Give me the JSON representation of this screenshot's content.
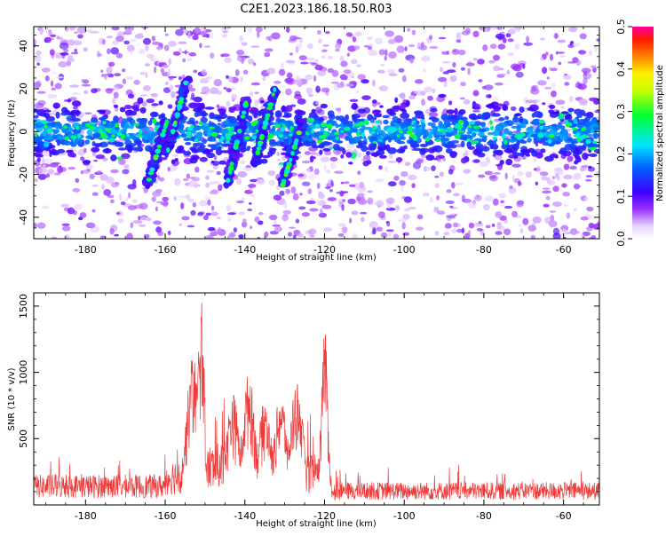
{
  "title": "C2E1.2023.186.18.50.R03",
  "chart_data": [
    {
      "type": "heatmap",
      "xlabel": "Height of straight line (km)",
      "ylabel": "Frequency (Hz)",
      "xlim": [
        -193,
        -51
      ],
      "ylim": [
        -50,
        49
      ],
      "x_ticks": [
        -180,
        -160,
        -140,
        -120,
        -100,
        -80,
        -60
      ],
      "y_ticks": [
        -40,
        -20,
        0,
        20,
        40
      ],
      "colorbar": {
        "label": "Normalized spectral amplitude",
        "range": [
          0.0,
          0.5
        ],
        "ticks": [
          "0.0",
          "0.1",
          "0.2",
          "0.3",
          "0.4",
          "0.5"
        ]
      },
      "features": [
        {
          "x_start": -193,
          "x_end": -51,
          "freq_center": 0,
          "freq_halfwidth": 8,
          "description": "horizontal band"
        },
        {
          "x": -162,
          "freq": [
            -25,
            5
          ]
        },
        {
          "x": -157,
          "freq": [
            -10,
            25
          ]
        },
        {
          "x": -142,
          "freq": [
            -25,
            15
          ]
        },
        {
          "x": -135,
          "freq": [
            -15,
            20
          ]
        },
        {
          "x": -128,
          "freq": [
            -25,
            5
          ]
        }
      ]
    },
    {
      "type": "line",
      "xlabel": "Height of straight line (km)",
      "ylabel": "SNR (10 * v/v)",
      "xlim": [
        -193,
        -51
      ],
      "ylim": [
        0,
        1600
      ],
      "x_ticks": [
        -180,
        -160,
        -140,
        -120,
        -100,
        -80,
        -60
      ],
      "y_ticks": [
        500,
        1000,
        1500
      ],
      "line_color": "#ef3a3a",
      "peaks": [
        {
          "x": -151,
          "y": 1600
        },
        {
          "x": -153,
          "y": 1150
        },
        {
          "x": -120,
          "y": 1350
        },
        {
          "x": -139,
          "y": 1000
        },
        {
          "x": -127,
          "y": 950
        },
        {
          "x": -131,
          "y": 850
        },
        {
          "x": -135,
          "y": 800
        },
        {
          "x": -143,
          "y": 850
        }
      ],
      "baseline_left": 200,
      "baseline_right": 150
    }
  ]
}
